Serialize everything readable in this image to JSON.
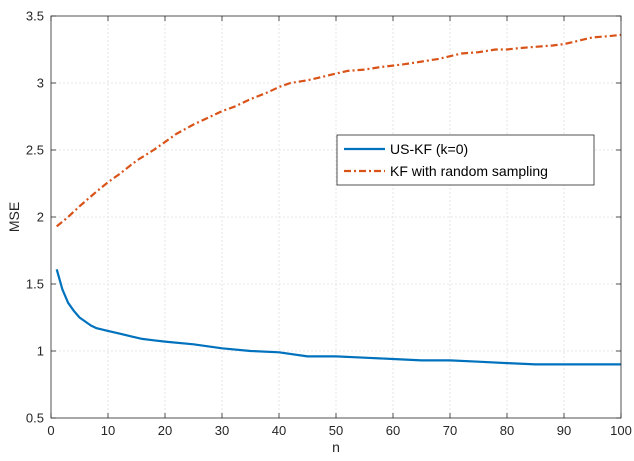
{
  "chart_data": {
    "type": "line",
    "title": "",
    "xlabel": "n",
    "ylabel": "MSE",
    "xlim": [
      0,
      100
    ],
    "ylim": [
      0.5,
      3.5
    ],
    "xticks": [
      0,
      10,
      20,
      30,
      40,
      50,
      60,
      70,
      80,
      90,
      100
    ],
    "yticks": [
      0.5,
      1,
      1.5,
      2,
      2.5,
      3,
      3.5
    ],
    "xtick_labels": [
      "0",
      "10",
      "20",
      "30",
      "40",
      "50",
      "60",
      "70",
      "80",
      "90",
      "100"
    ],
    "ytick_labels": [
      "0.5",
      "1",
      "1.5",
      "2",
      "2.5",
      "3",
      "3.5"
    ],
    "grid": true,
    "legend_position": "right-center",
    "series": [
      {
        "name": "US-KF (k=0)",
        "color": "#0072BD",
        "line_style": "solid",
        "x": [
          1,
          2,
          3,
          4,
          5,
          6,
          7,
          8,
          10,
          12,
          14,
          16,
          18,
          20,
          25,
          30,
          35,
          40,
          45,
          50,
          55,
          60,
          65,
          70,
          75,
          80,
          85,
          90,
          95,
          100
        ],
        "y": [
          1.61,
          1.46,
          1.36,
          1.3,
          1.25,
          1.22,
          1.19,
          1.17,
          1.15,
          1.13,
          1.11,
          1.09,
          1.08,
          1.07,
          1.05,
          1.02,
          1.0,
          0.99,
          0.96,
          0.96,
          0.95,
          0.94,
          0.93,
          0.93,
          0.92,
          0.91,
          0.9,
          0.9,
          0.9,
          0.9
        ]
      },
      {
        "name": "KF with random sampling",
        "color": "#D95319",
        "line_style": "dash-dot",
        "x": [
          1,
          3,
          5,
          8,
          10,
          12,
          15,
          18,
          20,
          22,
          25,
          28,
          30,
          32,
          35,
          38,
          40,
          42,
          45,
          48,
          50,
          52,
          55,
          58,
          60,
          62,
          65,
          68,
          70,
          72,
          75,
          78,
          80,
          82,
          85,
          88,
          90,
          92,
          95,
          98,
          100
        ],
        "y": [
          1.93,
          2.0,
          2.08,
          2.19,
          2.26,
          2.32,
          2.42,
          2.5,
          2.56,
          2.62,
          2.69,
          2.75,
          2.79,
          2.82,
          2.88,
          2.93,
          2.97,
          3.0,
          3.02,
          3.05,
          3.07,
          3.09,
          3.1,
          3.12,
          3.13,
          3.14,
          3.16,
          3.18,
          3.2,
          3.22,
          3.23,
          3.25,
          3.25,
          3.26,
          3.27,
          3.28,
          3.29,
          3.31,
          3.34,
          3.35,
          3.36
        ]
      }
    ]
  }
}
